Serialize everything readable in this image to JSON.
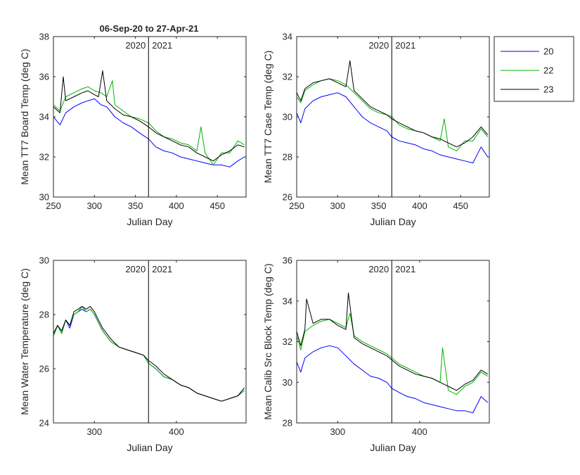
{
  "title": "06-Sep-20 to 27-Apr-21",
  "legend": {
    "placement": "outside-top-right",
    "entries": [
      "20",
      "22",
      "23"
    ]
  },
  "colors": {
    "20": "#0000ff",
    "22": "#00b400",
    "23": "#000000"
  },
  "year_labels": [
    "2020",
    "2021"
  ],
  "chart_data": [
    {
      "type": "line",
      "xlabel": "Julian Day",
      "ylabel": "Mean TT7 Board Temp (deg C)",
      "xlim": [
        250,
        485
      ],
      "ylim": [
        30,
        38
      ],
      "xticks": [
        250,
        300,
        350,
        400,
        450
      ],
      "yticks": [
        30,
        32,
        34,
        36,
        38
      ],
      "year_boundary_x": 366,
      "series": [
        {
          "name": "20",
          "x": [
            250,
            258,
            265,
            275,
            285,
            292,
            300,
            308,
            315,
            325,
            335,
            345,
            355,
            366,
            375,
            385,
            395,
            405,
            415,
            425,
            435,
            445,
            455,
            465,
            475,
            483
          ],
          "y": [
            34.0,
            33.6,
            34.2,
            34.5,
            34.7,
            34.8,
            34.9,
            34.6,
            34.5,
            34.0,
            33.7,
            33.5,
            33.2,
            32.9,
            32.5,
            32.3,
            32.2,
            32.0,
            31.9,
            31.8,
            31.7,
            31.6,
            31.6,
            31.5,
            31.8,
            32.0
          ]
        },
        {
          "name": "22",
          "x": [
            250,
            258,
            265,
            275,
            285,
            292,
            300,
            308,
            315,
            322,
            325,
            335,
            345,
            355,
            366,
            375,
            385,
            395,
            405,
            415,
            425,
            430,
            435,
            445,
            455,
            465,
            475,
            483
          ],
          "y": [
            34.6,
            34.3,
            35.0,
            35.2,
            35.4,
            35.5,
            35.3,
            35.2,
            35.0,
            35.8,
            34.6,
            34.3,
            34.0,
            33.9,
            33.7,
            33.3,
            33.0,
            32.9,
            32.7,
            32.6,
            32.3,
            33.5,
            32.2,
            31.6,
            32.2,
            32.2,
            32.8,
            32.6
          ]
        },
        {
          "name": "23",
          "x": [
            250,
            258,
            262,
            265,
            275,
            285,
            292,
            300,
            305,
            310,
            315,
            325,
            335,
            345,
            355,
            366,
            375,
            385,
            395,
            405,
            415,
            425,
            435,
            445,
            455,
            465,
            475,
            483
          ],
          "y": [
            34.5,
            34.2,
            36.0,
            34.8,
            35.0,
            35.2,
            35.3,
            35.1,
            35.0,
            36.3,
            34.8,
            34.4,
            34.1,
            34.0,
            33.8,
            33.5,
            33.2,
            33.0,
            32.8,
            32.6,
            32.5,
            32.2,
            32.0,
            31.8,
            32.1,
            32.3,
            32.6,
            32.5
          ]
        }
      ]
    },
    {
      "type": "line",
      "xlabel": "Julian Day",
      "ylabel": "Mean TT7 Case Temp (deg C)",
      "xlim": [
        250,
        485
      ],
      "ylim": [
        26,
        34
      ],
      "xticks": [
        250,
        300,
        350,
        400,
        450
      ],
      "yticks": [
        26,
        28,
        30,
        32,
        34
      ],
      "year_boundary_x": 366,
      "series": [
        {
          "name": "20",
          "x": [
            250,
            255,
            260,
            270,
            280,
            290,
            300,
            310,
            320,
            330,
            340,
            350,
            360,
            366,
            375,
            385,
            395,
            405,
            415,
            425,
            435,
            445,
            455,
            465,
            475,
            483
          ],
          "y": [
            30.2,
            29.7,
            30.4,
            30.8,
            31.0,
            31.1,
            31.2,
            31.0,
            30.5,
            30.0,
            29.7,
            29.5,
            29.3,
            29.0,
            28.8,
            28.7,
            28.6,
            28.4,
            28.3,
            28.1,
            28.0,
            27.9,
            27.8,
            27.7,
            28.5,
            28.0
          ]
        },
        {
          "name": "22",
          "x": [
            250,
            255,
            260,
            270,
            280,
            290,
            300,
            310,
            320,
            330,
            340,
            350,
            360,
            366,
            375,
            385,
            395,
            405,
            415,
            425,
            430,
            435,
            445,
            455,
            465,
            475,
            483
          ],
          "y": [
            31.0,
            30.7,
            31.3,
            31.6,
            31.8,
            31.9,
            31.8,
            31.6,
            31.2,
            30.8,
            30.4,
            30.2,
            30.1,
            30.0,
            29.6,
            29.4,
            29.3,
            29.2,
            29.0,
            28.8,
            29.9,
            28.5,
            28.3,
            28.8,
            28.8,
            29.4,
            29.0
          ]
        },
        {
          "name": "23",
          "x": [
            250,
            255,
            260,
            270,
            280,
            290,
            300,
            310,
            315,
            320,
            330,
            340,
            350,
            360,
            366,
            375,
            385,
            395,
            405,
            415,
            425,
            435,
            445,
            455,
            465,
            475,
            483
          ],
          "y": [
            31.2,
            30.8,
            31.4,
            31.7,
            31.8,
            31.9,
            31.7,
            31.5,
            32.8,
            31.3,
            30.9,
            30.5,
            30.3,
            30.1,
            29.9,
            29.7,
            29.5,
            29.3,
            29.2,
            29.0,
            28.9,
            28.7,
            28.5,
            28.7,
            29.0,
            29.5,
            29.1
          ]
        }
      ]
    },
    {
      "type": "line",
      "xlabel": "Julian Day",
      "ylabel": "Mean Water Temperature (deg C)",
      "xlim": [
        250,
        485
      ],
      "ylim": [
        24,
        30
      ],
      "xticks": [
        300,
        400
      ],
      "yticks": [
        24,
        26,
        28,
        30
      ],
      "year_boundary_x": 366,
      "series": [
        {
          "name": "20",
          "x": [
            250,
            255,
            260,
            265,
            270,
            275,
            280,
            285,
            290,
            295,
            300,
            305,
            310,
            320,
            330,
            340,
            350,
            360,
            366,
            375,
            385,
            395,
            405,
            415,
            425,
            435,
            445,
            455,
            465,
            475,
            483
          ],
          "y": [
            27.2,
            27.6,
            27.3,
            27.8,
            27.5,
            28.0,
            28.1,
            28.2,
            28.1,
            28.2,
            28.0,
            27.7,
            27.4,
            27.0,
            26.8,
            26.7,
            26.6,
            26.5,
            26.2,
            26.0,
            25.7,
            25.6,
            25.4,
            25.3,
            25.1,
            25.0,
            24.9,
            24.8,
            24.9,
            25.0,
            25.2
          ]
        },
        {
          "name": "22",
          "x": [
            250,
            255,
            260,
            265,
            270,
            275,
            280,
            285,
            290,
            295,
            300,
            305,
            310,
            320,
            330,
            340,
            350,
            360,
            366,
            375,
            385,
            395,
            405,
            415,
            425,
            435,
            445,
            455,
            465,
            475,
            483
          ],
          "y": [
            27.2,
            27.6,
            27.3,
            27.8,
            27.6,
            28.0,
            28.1,
            28.3,
            28.1,
            28.2,
            28.0,
            27.7,
            27.4,
            27.0,
            26.8,
            26.7,
            26.6,
            26.5,
            26.2,
            26.0,
            25.7,
            25.6,
            25.4,
            25.3,
            25.1,
            25.0,
            24.9,
            24.8,
            24.9,
            25.0,
            25.2
          ]
        },
        {
          "name": "23",
          "x": [
            250,
            255,
            260,
            265,
            270,
            275,
            280,
            285,
            290,
            295,
            300,
            305,
            310,
            320,
            330,
            340,
            350,
            360,
            366,
            375,
            385,
            395,
            405,
            415,
            425,
            435,
            445,
            455,
            465,
            475,
            483
          ],
          "y": [
            27.3,
            27.6,
            27.4,
            27.8,
            27.6,
            28.1,
            28.2,
            28.3,
            28.2,
            28.3,
            28.1,
            27.8,
            27.5,
            27.1,
            26.8,
            26.7,
            26.6,
            26.5,
            26.3,
            26.1,
            25.8,
            25.6,
            25.4,
            25.3,
            25.1,
            25.0,
            24.9,
            24.8,
            24.9,
            25.0,
            25.3
          ]
        }
      ]
    },
    {
      "type": "line",
      "xlabel": "Julian Day",
      "ylabel": "Mean Calib Src Block Temp (deg C)",
      "xlim": [
        250,
        485
      ],
      "ylim": [
        28,
        36
      ],
      "xticks": [
        300,
        400
      ],
      "yticks": [
        28,
        30,
        32,
        34,
        36
      ],
      "year_boundary_x": 366,
      "series": [
        {
          "name": "20",
          "x": [
            250,
            255,
            260,
            270,
            280,
            290,
            300,
            310,
            320,
            330,
            340,
            350,
            360,
            366,
            375,
            385,
            395,
            405,
            415,
            425,
            435,
            445,
            455,
            465,
            475,
            483
          ],
          "y": [
            31.0,
            30.5,
            31.2,
            31.5,
            31.7,
            31.8,
            31.7,
            31.3,
            30.9,
            30.6,
            30.3,
            30.2,
            30.0,
            29.7,
            29.5,
            29.3,
            29.2,
            29.0,
            28.9,
            28.8,
            28.7,
            28.6,
            28.6,
            28.5,
            29.3,
            29.0
          ]
        },
        {
          "name": "22",
          "x": [
            250,
            255,
            260,
            270,
            280,
            290,
            300,
            310,
            315,
            320,
            330,
            340,
            350,
            360,
            366,
            375,
            385,
            395,
            405,
            415,
            425,
            428,
            435,
            445,
            455,
            465,
            475,
            483
          ],
          "y": [
            32.3,
            31.6,
            32.5,
            32.8,
            33.0,
            33.1,
            32.9,
            32.7,
            33.4,
            32.3,
            32.0,
            31.8,
            31.6,
            31.4,
            31.2,
            30.9,
            30.7,
            30.5,
            30.3,
            30.2,
            30.0,
            31.7,
            29.6,
            29.4,
            29.8,
            30.0,
            30.5,
            30.3
          ]
        },
        {
          "name": "23",
          "x": [
            250,
            255,
            260,
            262,
            270,
            280,
            290,
            300,
            310,
            313,
            320,
            330,
            340,
            350,
            360,
            366,
            375,
            385,
            395,
            405,
            415,
            425,
            435,
            445,
            455,
            465,
            475,
            483
          ],
          "y": [
            32.5,
            31.8,
            32.6,
            34.1,
            32.9,
            33.1,
            33.1,
            32.8,
            32.6,
            34.4,
            32.2,
            31.9,
            31.7,
            31.5,
            31.3,
            31.1,
            30.8,
            30.6,
            30.4,
            30.3,
            30.2,
            30.0,
            29.8,
            29.6,
            29.9,
            30.1,
            30.6,
            30.4
          ]
        }
      ]
    }
  ]
}
